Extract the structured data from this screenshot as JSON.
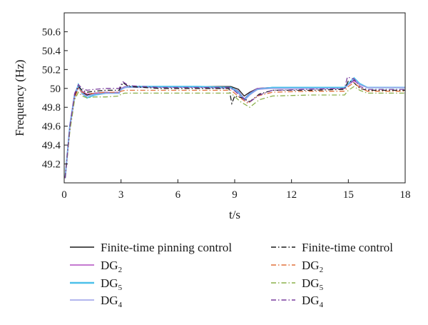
{
  "chart_data": {
    "type": "line",
    "xlabel": "t/s",
    "ylabel": "Frequency (Hz)",
    "xlim": [
      0,
      18
    ],
    "ylim": [
      49.0,
      50.8
    ],
    "x_ticks": [
      0,
      3,
      6,
      9,
      12,
      15,
      18
    ],
    "y_ticks": [
      49.2,
      49.4,
      49.6,
      49.8,
      50,
      50.2,
      50.4,
      50.6
    ],
    "grid": false,
    "legend_position": "bottom",
    "legend": {
      "left_title": "Finite-time pinning control",
      "right_title": "Finite-time control",
      "entries": [
        {
          "base": "DG",
          "sub": "2"
        },
        {
          "base": "DG",
          "sub": "5"
        },
        {
          "base": "DG",
          "sub": "4"
        }
      ]
    },
    "series": [
      {
        "name": "Finite-time pinning control",
        "color": "#1a1a1a",
        "dash": "solid",
        "x": [
          0.05,
          0.3,
          0.55,
          0.75,
          0.95,
          1.2,
          1.6,
          2.2,
          2.9,
          3.0,
          3.2,
          3.6,
          5,
          7,
          8.8,
          9.2,
          9.5,
          9.8,
          10.2,
          11,
          13,
          14.8,
          15.0,
          15.3,
          15.6,
          16,
          18
        ],
        "y": [
          49.05,
          49.6,
          49.93,
          50.01,
          49.96,
          49.93,
          49.95,
          49.96,
          49.96,
          49.99,
          50.01,
          50.02,
          50.02,
          50.02,
          50.02,
          49.99,
          49.92,
          49.96,
          50.0,
          50.01,
          50.01,
          50.01,
          50.04,
          50.09,
          50.04,
          50.01,
          50.01
        ]
      },
      {
        "name": "DG2",
        "color": "#b24fc2",
        "dash": "solid",
        "x": [
          0.05,
          0.3,
          0.55,
          0.75,
          0.95,
          1.2,
          1.6,
          2.2,
          2.9,
          3.0,
          3.2,
          3.6,
          5,
          7,
          8.8,
          9.2,
          9.5,
          9.8,
          10.2,
          11,
          13,
          14.8,
          15.0,
          15.3,
          15.6,
          16,
          18
        ],
        "y": [
          49.05,
          49.62,
          49.95,
          50.03,
          49.97,
          49.94,
          49.95,
          49.96,
          49.96,
          50.0,
          50.02,
          50.02,
          50.02,
          50.02,
          50.01,
          49.97,
          49.89,
          49.95,
          50.0,
          50.01,
          50.01,
          50.01,
          50.04,
          50.08,
          50.04,
          50.01,
          50.01
        ]
      },
      {
        "name": "DG5",
        "color": "#4cc0ea",
        "dash": "solid",
        "x": [
          0.05,
          0.3,
          0.55,
          0.75,
          0.95,
          1.2,
          1.6,
          2.2,
          2.9,
          3.0,
          3.2,
          3.6,
          5,
          7,
          8.8,
          9.2,
          9.5,
          9.8,
          10.2,
          11,
          13,
          14.8,
          15.0,
          15.3,
          15.6,
          16,
          18
        ],
        "y": [
          49.05,
          49.6,
          49.92,
          50.04,
          49.95,
          49.9,
          49.93,
          49.95,
          49.95,
          49.99,
          50.01,
          50.02,
          50.02,
          50.02,
          50.01,
          49.96,
          49.88,
          49.94,
          49.99,
          50.01,
          50.01,
          50.01,
          50.05,
          50.11,
          50.05,
          50.01,
          50.01
        ]
      },
      {
        "name": "DG4",
        "color": "#9a9ee8",
        "dash": "solid",
        "x": [
          0.05,
          0.3,
          0.55,
          0.75,
          0.95,
          1.2,
          1.6,
          2.2,
          2.9,
          3.0,
          3.2,
          3.6,
          5,
          7,
          8.8,
          9.2,
          9.5,
          9.8,
          10.2,
          11,
          13,
          14.8,
          15.0,
          15.3,
          15.6,
          16,
          18
        ],
        "y": [
          49.05,
          49.58,
          49.9,
          50.02,
          49.94,
          49.92,
          49.94,
          49.95,
          49.95,
          49.99,
          50.01,
          50.01,
          50.01,
          50.01,
          50.0,
          49.95,
          49.87,
          49.93,
          49.99,
          50.0,
          50.0,
          50.0,
          50.04,
          50.1,
          50.04,
          50.01,
          50.01
        ]
      },
      {
        "name": "Finite-time control",
        "color": "#1a1a1a",
        "dash": "dashdot",
        "x": [
          0.05,
          0.3,
          0.55,
          0.75,
          0.95,
          1.2,
          1.6,
          2.2,
          2.9,
          3.0,
          3.1,
          3.4,
          5,
          7,
          8.7,
          8.85,
          9.0,
          9.4,
          9.8,
          10.3,
          11,
          13,
          14.8,
          15.0,
          15.3,
          15.6,
          16,
          18
        ],
        "y": [
          49.05,
          49.58,
          49.92,
          50.02,
          49.98,
          49.96,
          49.97,
          49.98,
          49.98,
          50.02,
          50.06,
          50.02,
          50.0,
          50.0,
          50.0,
          49.84,
          49.92,
          49.9,
          49.86,
          49.94,
          49.98,
          49.98,
          49.99,
          50.08,
          50.06,
          50.0,
          49.98,
          49.98
        ]
      },
      {
        "name": "DG2",
        "color": "#e0703a",
        "dash": "dashdot",
        "x": [
          0.05,
          0.3,
          0.55,
          0.75,
          0.95,
          1.2,
          1.6,
          2.2,
          2.9,
          3.0,
          3.2,
          3.6,
          5,
          7,
          8.8,
          9.3,
          9.7,
          10.2,
          11,
          13,
          14.8,
          15.0,
          15.3,
          15.6,
          16,
          18
        ],
        "y": [
          49.05,
          49.57,
          49.9,
          50.0,
          49.96,
          49.94,
          49.95,
          49.96,
          49.96,
          49.97,
          49.98,
          49.98,
          49.98,
          49.98,
          49.98,
          49.9,
          49.84,
          49.92,
          49.96,
          49.97,
          49.97,
          50.02,
          50.06,
          50.01,
          49.97,
          49.97
        ]
      },
      {
        "name": "DG5",
        "color": "#8bb04a",
        "dash": "dashdot",
        "x": [
          0.05,
          0.3,
          0.55,
          0.75,
          0.95,
          1.2,
          1.6,
          2.2,
          2.9,
          3.0,
          3.2,
          3.6,
          5,
          7,
          8.8,
          9.3,
          9.8,
          10.3,
          11,
          13,
          14.8,
          15.0,
          15.3,
          15.6,
          16,
          18
        ],
        "y": [
          49.05,
          49.55,
          49.88,
          49.96,
          49.92,
          49.9,
          49.91,
          49.91,
          49.92,
          49.94,
          49.95,
          49.95,
          49.95,
          49.95,
          49.95,
          49.86,
          49.8,
          49.88,
          49.92,
          49.93,
          49.93,
          49.98,
          50.02,
          49.98,
          49.95,
          49.95
        ]
      },
      {
        "name": "DG4",
        "color": "#7a3c9e",
        "dash": "dashdot",
        "x": [
          0.05,
          0.3,
          0.55,
          0.75,
          0.95,
          1.2,
          1.6,
          2.2,
          2.9,
          3.0,
          3.1,
          3.4,
          5,
          7,
          8.8,
          9.3,
          9.75,
          10.3,
          11,
          13,
          14.8,
          14.95,
          15.3,
          15.6,
          16,
          18
        ],
        "y": [
          49.05,
          49.6,
          49.94,
          50.04,
          50.0,
          49.98,
          49.99,
          50.0,
          50.0,
          50.04,
          50.07,
          50.03,
          50.01,
          50.01,
          50.01,
          49.92,
          49.85,
          49.93,
          49.98,
          49.99,
          50.0,
          50.12,
          50.1,
          50.02,
          49.99,
          49.99
        ]
      }
    ]
  }
}
